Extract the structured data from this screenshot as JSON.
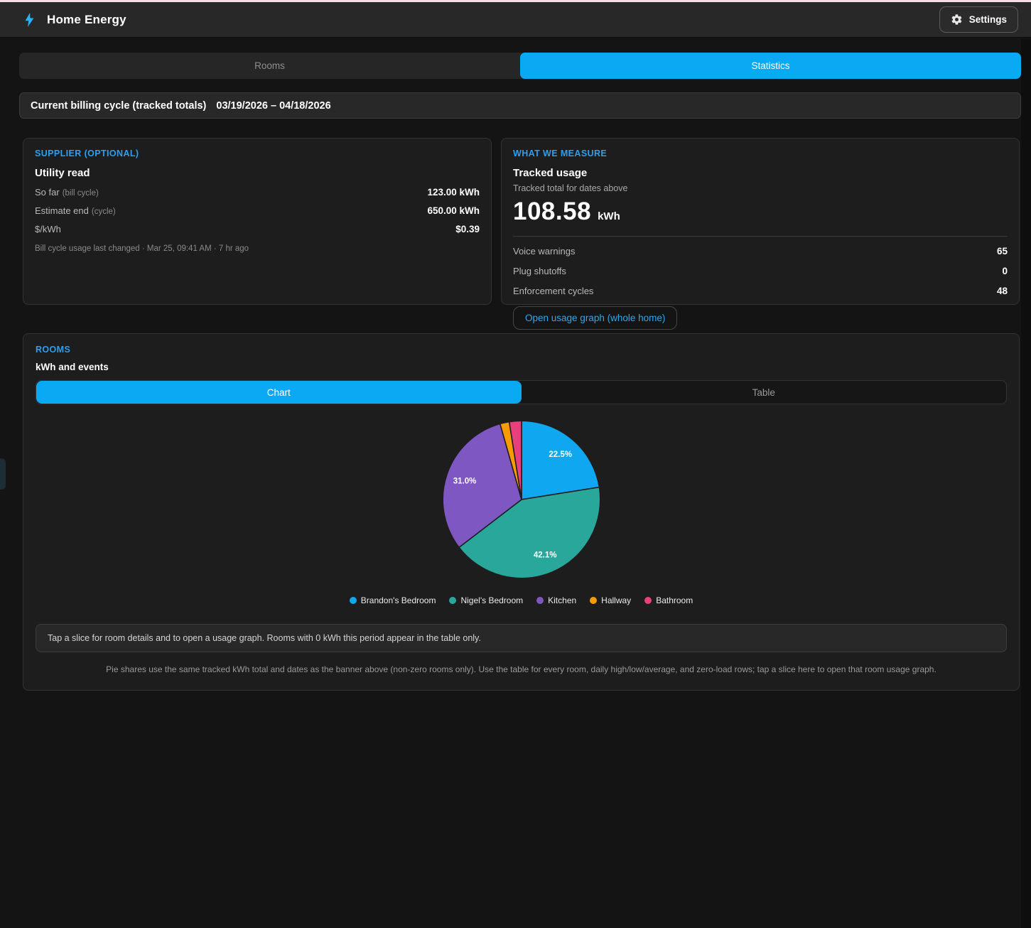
{
  "header": {
    "title": "Home Energy",
    "settings_label": "Settings"
  },
  "tabs": [
    {
      "label": "Rooms",
      "active": false
    },
    {
      "label": "Statistics",
      "active": true
    }
  ],
  "banner": {
    "label": "Current billing cycle (tracked totals)",
    "date_range": "03/19/2026 – 04/18/2026"
  },
  "supplier": {
    "heading": "SUPPLIER (OPTIONAL)",
    "title": "Utility read",
    "rows": [
      {
        "label": "So far",
        "hint": "(bill cycle)",
        "value": "123.00 kWh"
      },
      {
        "label": "Estimate end",
        "hint": "(cycle)",
        "value": "650.00 kWh"
      },
      {
        "label": "$/kWh",
        "hint": "",
        "value": "$0.39"
      }
    ],
    "footnote": "Bill cycle usage last changed · Mar 25, 09:41 AM · 7 hr ago"
  },
  "measure": {
    "heading": "WHAT WE MEASURE",
    "title": "Tracked usage",
    "subtitle": "Tracked total for dates above",
    "total_value": "108.58",
    "total_unit": "kWh",
    "counters": [
      {
        "label": "Voice warnings",
        "value": "65"
      },
      {
        "label": "Plug shutoffs",
        "value": "0"
      },
      {
        "label": "Enforcement cycles",
        "value": "48"
      }
    ],
    "button_label": "Open usage graph (whole home)"
  },
  "rooms": {
    "heading": "ROOMS",
    "subtitle": "kWh and events",
    "view_tabs": [
      {
        "label": "Chart",
        "active": true
      },
      {
        "label": "Table",
        "active": false
      }
    ],
    "hint": "Tap a slice for room details and to open a usage graph. Rooms with 0 kWh this period appear in the table only.",
    "footer": "Pie shares use the same tracked kWh total and dates as the banner above (non-zero rooms only). Use the table for every room, daily high/low/average, and zero-load rows; tap a slice here to open that room usage graph."
  },
  "chart_data": {
    "type": "pie",
    "categories": [
      "Brandon's Bedroom",
      "Nigel's Bedroom",
      "Kitchen",
      "Hallway",
      "Bathroom"
    ],
    "values": [
      22.5,
      42.1,
      31.0,
      1.9,
      2.5
    ],
    "unit": "%",
    "colors": [
      "#0fa7f0",
      "#2aa79b",
      "#7e57c2",
      "#f89b05",
      "#e8407a"
    ],
    "label_min_pct": 5,
    "legend_position": "bottom",
    "total_tracked_kwh": 108.58
  },
  "colors": {
    "accent_blue": "#0aa9f4",
    "heading_blue": "#2b9ff2",
    "page_background": "#141414",
    "panel_background": "#1d1d1d"
  }
}
